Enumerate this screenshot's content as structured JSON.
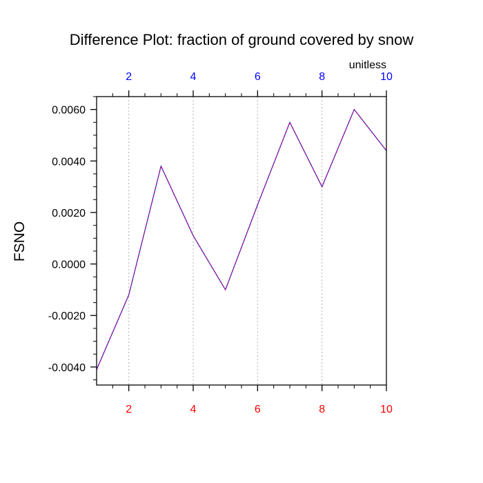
{
  "chart_data": {
    "type": "line",
    "title": "Difference Plot: fraction of ground covered by snow",
    "units_label": "unitless",
    "ylabel": "FSNO",
    "xlabel": "",
    "xlim": [
      1,
      10
    ],
    "ylim": [
      -0.0047,
      0.0065
    ],
    "x_ticks": [
      2,
      4,
      6,
      8,
      10
    ],
    "x_tick_labels": [
      "2",
      "4",
      "6",
      "8",
      "10"
    ],
    "y_ticks": [
      -0.004,
      -0.002,
      0.0,
      0.002,
      0.004,
      0.006
    ],
    "y_tick_labels": [
      "-0.0040",
      "-0.0020",
      "0.0000",
      "0.0020",
      "0.0040",
      "0.0060"
    ],
    "grid": "vertical dotted at x ticks",
    "series": [
      {
        "x": [
          1,
          2,
          3,
          4,
          5,
          6,
          7,
          8,
          9,
          10
        ],
        "values": [
          -0.0041,
          -0.0012,
          0.0038,
          0.0011,
          -0.001,
          0.0023,
          0.0055,
          0.003,
          0.006,
          0.0044
        ],
        "style": "dashed"
      }
    ],
    "colors": {
      "line": "#3a1fb0",
      "line_dash": "#b0008a",
      "top_axis_labels": "#0000ff",
      "bottom_axis_labels": "#ff0000",
      "grid": "#b0b0b0"
    }
  }
}
